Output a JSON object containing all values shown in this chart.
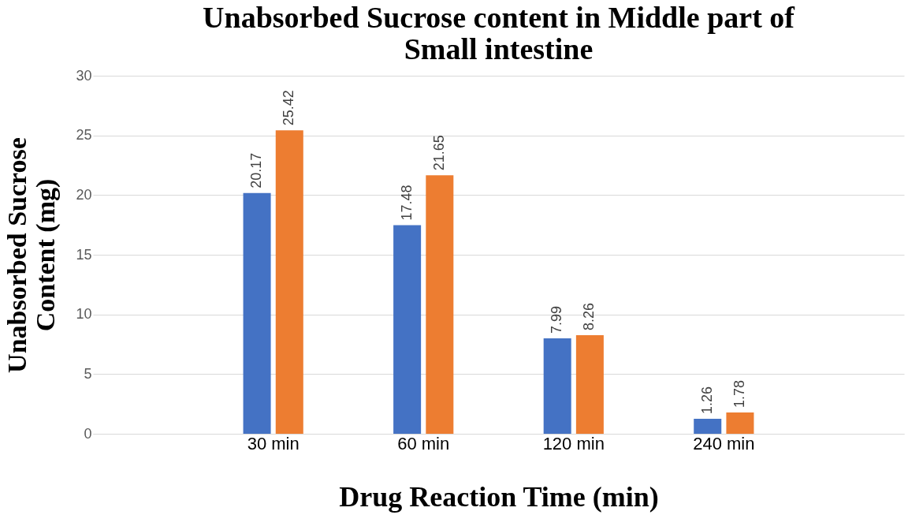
{
  "chart_data": {
    "type": "bar",
    "title": "Unabsorbed Sucrose content in Middle part of Small intestine",
    "xlabel": "Drug Reaction Time (min)",
    "ylabel": "Unabsorbed Sucrose Content (mg)",
    "categories": [
      null,
      "30 min",
      "60 min",
      "120 min",
      "240 min",
      null
    ],
    "series": [
      {
        "color": "#4472c4",
        "values": [
          null,
          20.17,
          17.48,
          7.99,
          1.26,
          null
        ]
      },
      {
        "color": "#ed7d31",
        "values": [
          null,
          25.42,
          21.65,
          8.26,
          1.78,
          null
        ]
      }
    ],
    "ylim": [
      0,
      30
    ],
    "yticks": [
      0,
      5,
      10,
      15,
      20,
      25,
      30
    ],
    "grid": "y",
    "legend": false,
    "data_labels": true
  }
}
